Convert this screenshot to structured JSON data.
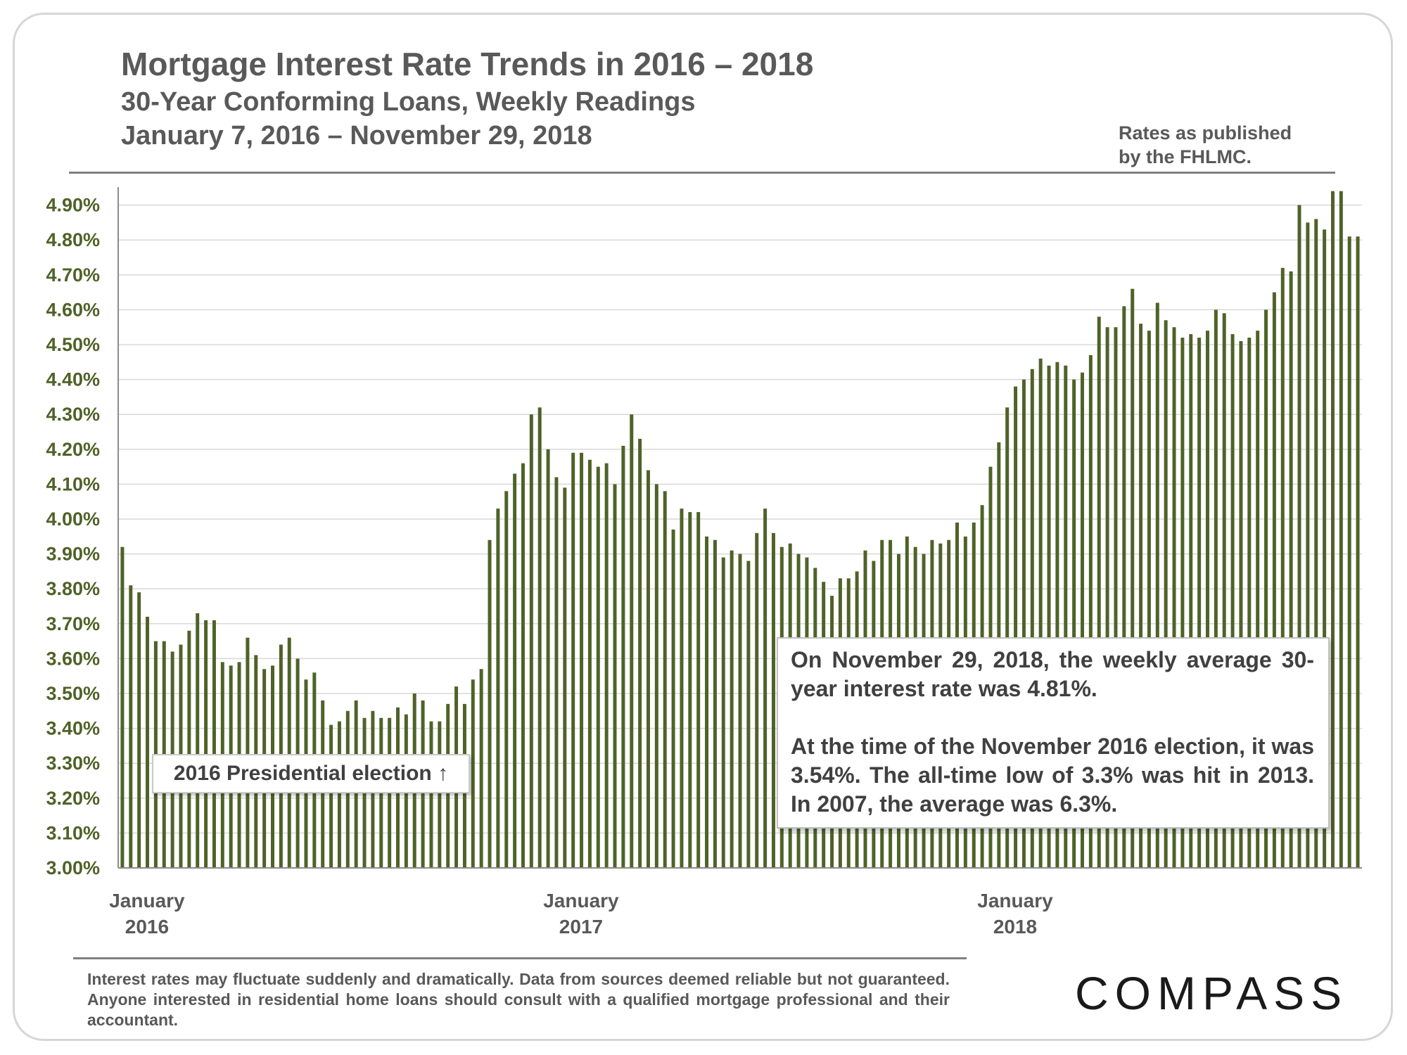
{
  "header": {
    "title": "Mortgage Interest Rate Trends in 2016 – 2018",
    "subtitle": "30-Year Conforming Loans, Weekly Readings",
    "date_range": "January 7, 2016 – November 29, 2018",
    "source_note": "Rates as published by the FHLMC."
  },
  "annotations": {
    "election_label": "2016 Presidential election ↑",
    "callout_p1": "On November 29, 2018, the weekly average 30-year interest rate was 4.81%.",
    "callout_p2": "At the time of the November 2016 election, it was 3.54%. The all-time low of 3.3% was hit in 2013. In 2007, the average was 6.3%."
  },
  "footer": {
    "disclaimer": "Interest rates may fluctuate suddenly and dramatically. Data from sources deemed reliable but not guaranteed. Anyone interested in residential home loans should consult with a qualified mortgage professional and their accountant.",
    "logo": "COMPASS"
  },
  "colors": {
    "bar": "#4f6228",
    "axis_text": "#4f6228",
    "gridline": "#d9d9d9",
    "text": "#595959"
  },
  "chart_data": {
    "type": "bar",
    "ylim": [
      3.0,
      4.95
    ],
    "yticks": [
      "3.00%",
      "3.10%",
      "3.20%",
      "3.30%",
      "3.40%",
      "3.50%",
      "3.60%",
      "3.70%",
      "3.80%",
      "3.90%",
      "4.00%",
      "4.10%",
      "4.20%",
      "4.30%",
      "4.40%",
      "4.50%",
      "4.60%",
      "4.70%",
      "4.80%",
      "4.90%"
    ],
    "ytick_values": [
      3.0,
      3.1,
      3.2,
      3.3,
      3.4,
      3.5,
      3.6,
      3.7,
      3.8,
      3.9,
      4.0,
      4.1,
      4.2,
      4.3,
      4.4,
      4.5,
      4.6,
      4.7,
      4.8,
      4.9
    ],
    "x_labels": [
      {
        "month": "January",
        "year": "2016",
        "index": 0
      },
      {
        "month": "January",
        "year": "2017",
        "index": 52
      },
      {
        "month": "January",
        "year": "2018",
        "index": 104
      }
    ],
    "grid": true,
    "values": [
      3.92,
      3.81,
      3.79,
      3.72,
      3.65,
      3.65,
      3.62,
      3.64,
      3.68,
      3.73,
      3.71,
      3.71,
      3.59,
      3.58,
      3.59,
      3.66,
      3.61,
      3.57,
      3.58,
      3.64,
      3.66,
      3.6,
      3.54,
      3.56,
      3.48,
      3.41,
      3.42,
      3.45,
      3.48,
      3.43,
      3.45,
      3.43,
      3.43,
      3.46,
      3.44,
      3.5,
      3.48,
      3.42,
      3.42,
      3.47,
      3.52,
      3.47,
      3.54,
      3.57,
      3.94,
      4.03,
      4.08,
      4.13,
      4.16,
      4.3,
      4.32,
      4.2,
      4.12,
      4.09,
      4.19,
      4.19,
      4.17,
      4.15,
      4.16,
      4.1,
      4.21,
      4.3,
      4.23,
      4.14,
      4.1,
      4.08,
      3.97,
      4.03,
      4.02,
      4.02,
      3.95,
      3.94,
      3.89,
      3.91,
      3.9,
      3.88,
      3.96,
      4.03,
      3.96,
      3.92,
      3.93,
      3.9,
      3.89,
      3.86,
      3.82,
      3.78,
      3.83,
      3.83,
      3.85,
      3.91,
      3.88,
      3.94,
      3.94,
      3.9,
      3.95,
      3.92,
      3.9,
      3.94,
      3.93,
      3.94,
      3.99,
      3.95,
      3.99,
      4.04,
      4.15,
      4.22,
      4.32,
      4.38,
      4.4,
      4.43,
      4.46,
      4.44,
      4.45,
      4.44,
      4.4,
      4.42,
      4.47,
      4.58,
      4.55,
      4.55,
      4.61,
      4.66,
      4.56,
      4.54,
      4.62,
      4.57,
      4.55,
      4.52,
      4.53,
      4.52,
      4.54,
      4.6,
      4.59,
      4.53,
      4.51,
      4.52,
      4.54,
      4.6,
      4.65,
      4.72,
      4.71,
      4.9,
      4.85,
      4.86,
      4.83,
      4.94,
      4.94,
      4.81,
      4.81
    ]
  }
}
